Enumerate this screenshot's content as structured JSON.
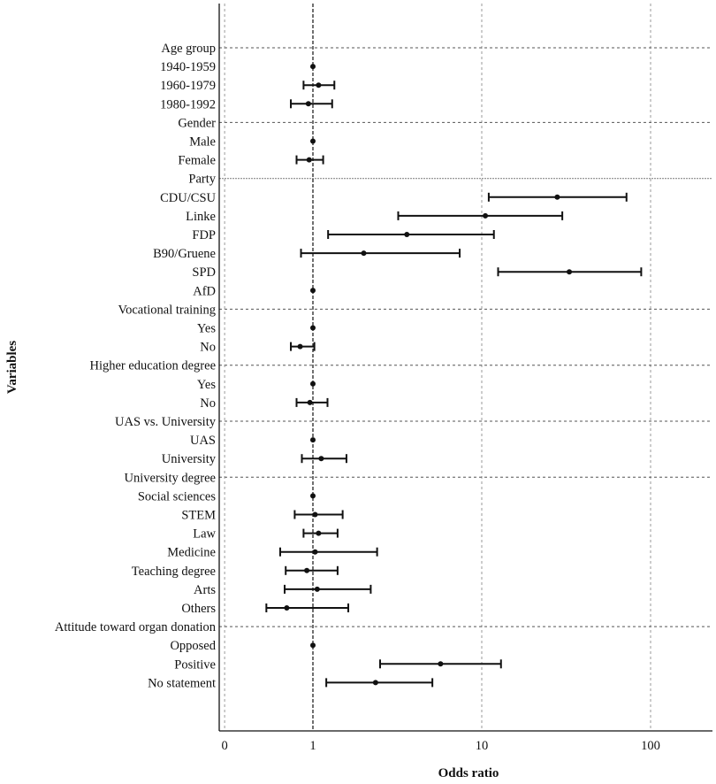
{
  "chart_data": {
    "type": "forest",
    "title": "",
    "xlabel": "Odds ratio",
    "ylabel": "Variables",
    "x_scale": "log",
    "x_ticks": [
      {
        "value": 0.3,
        "label": "0"
      },
      {
        "value": 1,
        "label": "1"
      },
      {
        "value": 10,
        "label": "10"
      },
      {
        "value": 100,
        "label": "100"
      }
    ],
    "reference_line": 1,
    "rows": [
      {
        "label": "Age group",
        "header": true
      },
      {
        "label": "1940-1959",
        "or": 1.0,
        "lo": 1.0,
        "hi": 1.0
      },
      {
        "label": "1960-1979",
        "or": 1.08,
        "lo": 0.88,
        "hi": 1.34
      },
      {
        "label": "1980-1992",
        "or": 0.94,
        "lo": 0.74,
        "hi": 1.3
      },
      {
        "label": "Gender",
        "header": true
      },
      {
        "label": "Male",
        "or": 1.0,
        "lo": 1.0,
        "hi": 1.0
      },
      {
        "label": "Female",
        "or": 0.95,
        "lo": 0.8,
        "hi": 1.15
      },
      {
        "label": "Party",
        "header": true
      },
      {
        "label": "CDU/CSU",
        "or": 28,
        "lo": 11,
        "hi": 72
      },
      {
        "label": "Linke",
        "or": 10.5,
        "lo": 3.2,
        "hi": 30
      },
      {
        "label": "FDP",
        "or": 3.6,
        "lo": 1.23,
        "hi": 11.8
      },
      {
        "label": "B90/Gruene",
        "or": 2.0,
        "lo": 0.85,
        "hi": 7.4
      },
      {
        "label": "SPD",
        "or": 33,
        "lo": 12.5,
        "hi": 88
      },
      {
        "label": "AfD",
        "or": 1.0,
        "lo": 1.0,
        "hi": 1.0
      },
      {
        "label": "Vocational training",
        "header": true
      },
      {
        "label": "Yes",
        "or": 1.0,
        "lo": 1.0,
        "hi": 1.0
      },
      {
        "label": "No",
        "or": 0.84,
        "lo": 0.74,
        "hi": 1.02
      },
      {
        "label": "Higher education degree",
        "header": true
      },
      {
        "label": "Yes",
        "or": 1.0,
        "lo": 1.0,
        "hi": 1.0
      },
      {
        "label": "No",
        "or": 0.96,
        "lo": 0.8,
        "hi": 1.22
      },
      {
        "label": "UAS vs. University",
        "header": true
      },
      {
        "label": "UAS",
        "or": 1.0,
        "lo": 1.0,
        "hi": 1.0
      },
      {
        "label": "University",
        "or": 1.12,
        "lo": 0.86,
        "hi": 1.58
      },
      {
        "label": "University degree",
        "header": true
      },
      {
        "label": "Social sciences",
        "or": 1.0,
        "lo": 1.0,
        "hi": 1.0
      },
      {
        "label": "STEM",
        "or": 1.03,
        "lo": 0.78,
        "hi": 1.5
      },
      {
        "label": "Law",
        "or": 1.08,
        "lo": 0.88,
        "hi": 1.4
      },
      {
        "label": "Medicine",
        "or": 1.03,
        "lo": 0.64,
        "hi": 2.4
      },
      {
        "label": "Teaching degree",
        "or": 0.92,
        "lo": 0.69,
        "hi": 1.4
      },
      {
        "label": "Arts",
        "or": 1.06,
        "lo": 0.68,
        "hi": 2.2
      },
      {
        "label": "Others",
        "or": 0.7,
        "lo": 0.53,
        "hi": 1.62
      },
      {
        "label": "Attitude toward organ donation",
        "header": true
      },
      {
        "label": "Opposed",
        "or": 1.0,
        "lo": 1.0,
        "hi": 1.0
      },
      {
        "label": "Positive",
        "or": 5.7,
        "lo": 2.5,
        "hi": 13
      },
      {
        "label": "No statement",
        "or": 2.35,
        "lo": 1.2,
        "hi": 5.1
      }
    ]
  }
}
